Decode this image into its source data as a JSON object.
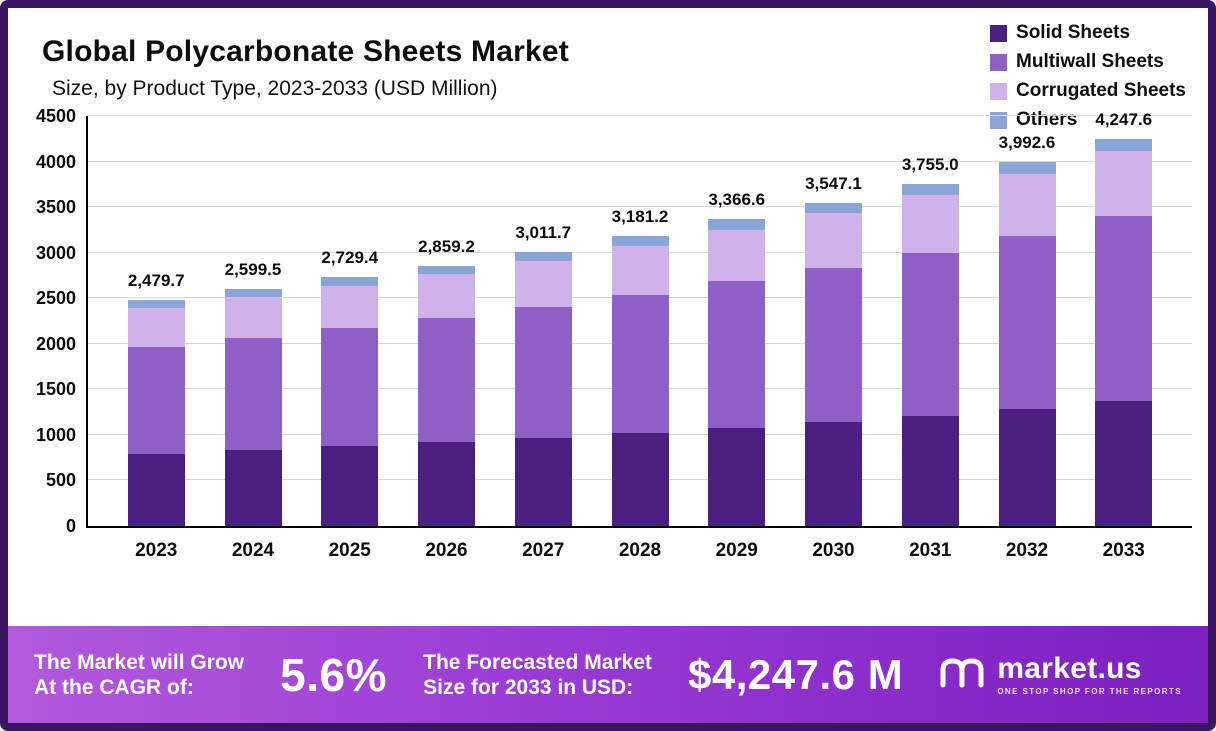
{
  "header": {
    "title": "Global Polycarbonate Sheets Market",
    "subtitle": "Size, by Product Type, 2023-2033 (USD Million)"
  },
  "legend": [
    {
      "label": "Solid Sheets",
      "color": "#4b1f7f"
    },
    {
      "label": "Multiwall Sheets",
      "color": "#8f5fc6"
    },
    {
      "label": "Corrugated Sheets",
      "color": "#cfb2e9"
    },
    {
      "label": "Others",
      "color": "#89a6d7"
    }
  ],
  "chart_data": {
    "type": "bar",
    "stacked": true,
    "categories": [
      "2023",
      "2024",
      "2025",
      "2026",
      "2027",
      "2028",
      "2029",
      "2030",
      "2031",
      "2032",
      "2033"
    ],
    "series": [
      {
        "name": "Solid Sheets",
        "color": "#4b1f7f",
        "values": [
          795,
          830,
          875,
          920,
          970,
          1025,
          1080,
          1140,
          1205,
          1280,
          1375
        ]
      },
      {
        "name": "Multiwall Sheets",
        "color": "#8f5fc6",
        "values": [
          1175,
          1235,
          1295,
          1360,
          1435,
          1515,
          1605,
          1695,
          1790,
          1905,
          2025
        ]
      },
      {
        "name": "Corrugated Sheets",
        "color": "#cfb2e9",
        "values": [
          425,
          445,
          465,
          485,
          508,
          535,
          568,
          598,
          635,
          675,
          715
        ]
      },
      {
        "name": "Others",
        "color": "#89a6d7",
        "values": [
          84.7,
          89.5,
          94.4,
          94.2,
          98.7,
          106.2,
          113.6,
          114.1,
          125.0,
          132.6,
          132.6
        ]
      }
    ],
    "totals": [
      2479.7,
      2599.5,
      2729.4,
      2859.2,
      3011.7,
      3181.2,
      3366.6,
      3547.1,
      3755.0,
      3992.6,
      4247.6
    ],
    "total_labels": [
      "2,479.7",
      "2,599.5",
      "2,729.4",
      "2,859.2",
      "3,011.7",
      "3,181.2",
      "3,366.6",
      "3,547.1",
      "3,755.0",
      "3,992.6",
      "4,247.6"
    ],
    "ylim": [
      0,
      4500
    ],
    "ytick_step": 500,
    "grid": true,
    "legend_position": "top-right"
  },
  "banner": {
    "cagr_label_line1": "The Market will Grow",
    "cagr_label_line2": "At the CAGR of:",
    "cagr_value": "5.6%",
    "forecast_label_line1": "The Forecasted Market",
    "forecast_label_line2": "Size for 2033 in USD:",
    "forecast_value": "$4,247.6 M",
    "brand": {
      "name": "market.us",
      "tagline": "ONE STOP SHOP FOR THE REPORTS"
    }
  }
}
